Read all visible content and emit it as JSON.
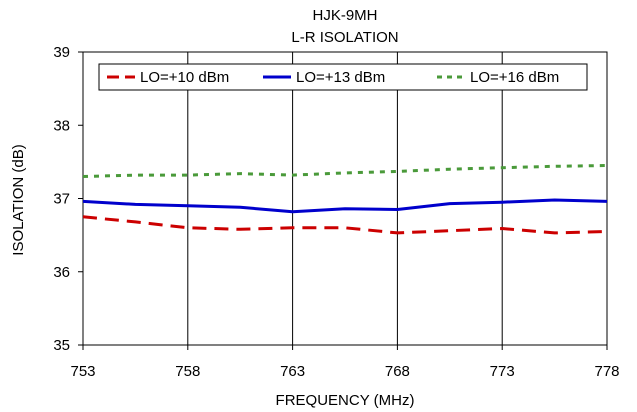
{
  "chart_data": {
    "type": "line",
    "title": "HJK-9MH",
    "subtitle": "L-R ISOLATION",
    "xlabel": "FREQUENCY (MHz)",
    "ylabel": "ISOLATION (dB)",
    "xlim": [
      753,
      778
    ],
    "ylim": [
      35,
      39
    ],
    "xticks": [
      "753",
      "758",
      "763",
      "768",
      "773",
      "778"
    ],
    "yticks": [
      "35",
      "36",
      "37",
      "38",
      "39"
    ],
    "grid": "vertical",
    "legend_position": "top",
    "series": [
      {
        "name": "LO=+10 dBm",
        "color": "#cc0000",
        "style": "dashed",
        "x": [
          753,
          755.5,
          758,
          760.5,
          763,
          765.5,
          768,
          770.5,
          773,
          775.5,
          778
        ],
        "y": [
          36.75,
          36.68,
          36.6,
          36.58,
          36.6,
          36.6,
          36.53,
          36.56,
          36.59,
          36.53,
          36.55
        ]
      },
      {
        "name": "LO=+13 dBm",
        "color": "#0000cc",
        "style": "solid",
        "x": [
          753,
          755.5,
          758,
          760.5,
          763,
          765.5,
          768,
          770.5,
          773,
          775.5,
          778
        ],
        "y": [
          36.96,
          36.92,
          36.9,
          36.88,
          36.82,
          36.86,
          36.85,
          36.93,
          36.95,
          36.98,
          36.96
        ]
      },
      {
        "name": "LO=+16 dBm",
        "color": "#4a9a3a",
        "style": "dotted",
        "x": [
          753,
          755.5,
          758,
          760.5,
          763,
          765.5,
          768,
          770.5,
          773,
          775.5,
          778
        ],
        "y": [
          37.3,
          37.32,
          37.32,
          37.34,
          37.32,
          37.35,
          37.37,
          37.4,
          37.42,
          37.44,
          37.45
        ]
      }
    ]
  }
}
